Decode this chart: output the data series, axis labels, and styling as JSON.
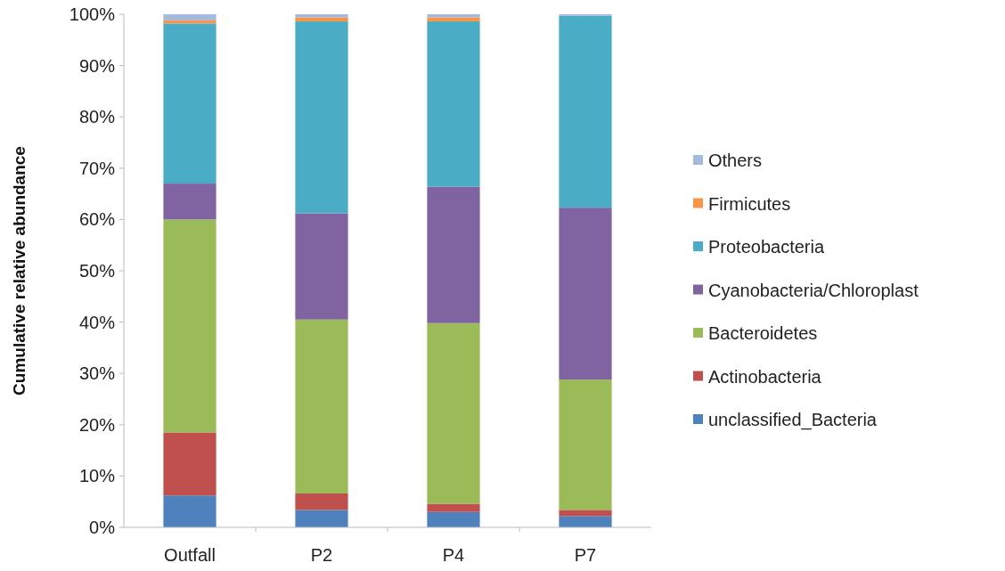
{
  "chart_data": {
    "type": "bar",
    "stacked": true,
    "ylabel": "Cumulative relative abundance",
    "categories": [
      "Outfall",
      "P2",
      "P4",
      "P7"
    ],
    "series": [
      {
        "name": "unclassified_Bacteria",
        "color": "#4f81bd",
        "values": [
          6.2,
          3.4,
          3.0,
          2.2
        ]
      },
      {
        "name": "Actinobacteria",
        "color": "#c0504d",
        "values": [
          12.3,
          3.2,
          1.6,
          1.2
        ]
      },
      {
        "name": "Bacteroidetes",
        "color": "#9bbb59",
        "values": [
          41.5,
          33.9,
          35.2,
          25.4
        ]
      },
      {
        "name": "Cyanobacteria/Chloroplast",
        "color": "#8064a2",
        "values": [
          7.0,
          20.7,
          26.6,
          33.5
        ]
      },
      {
        "name": "Proteobacteria",
        "color": "#4bacc6",
        "values": [
          31.2,
          37.4,
          32.2,
          37.4
        ]
      },
      {
        "name": "Firmicutes",
        "color": "#f79646",
        "values": [
          0.6,
          0.8,
          0.8,
          0
        ]
      },
      {
        "name": "Others",
        "color": "#a5b8dd",
        "values": [
          1.2,
          0.6,
          0.6,
          0.3
        ]
      }
    ],
    "ylim": [
      0,
      100
    ],
    "yticks": [
      {
        "value": 0,
        "label": "0%"
      },
      {
        "value": 10,
        "label": "10%"
      },
      {
        "value": 20,
        "label": "20%"
      },
      {
        "value": 30,
        "label": "30%"
      },
      {
        "value": 40,
        "label": "40%"
      },
      {
        "value": 50,
        "label": "50%"
      },
      {
        "value": 60,
        "label": "60%"
      },
      {
        "value": 70,
        "label": "70%"
      },
      {
        "value": 80,
        "label": "80%"
      },
      {
        "value": 90,
        "label": "90%"
      },
      {
        "value": 100,
        "label": "100%"
      }
    ],
    "legend": "right"
  }
}
